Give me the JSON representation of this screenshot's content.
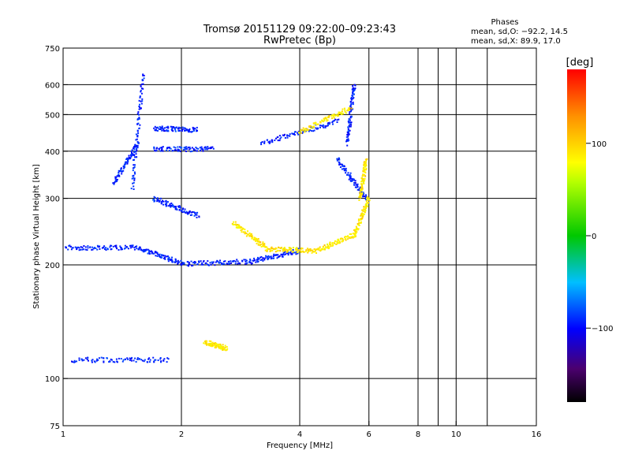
{
  "chart_data": {
    "type": "scatter",
    "title": "Tromsø 20151129 09:22:00–09:23:43",
    "subtitle": "RwPretec (Bp)",
    "xlabel": "Frequency [MHz]",
    "ylabel": "Stationary phase Virtual Height [km]",
    "x_scale": "log",
    "y_scale": "log",
    "xlim": [
      1,
      16
    ],
    "ylim": [
      75,
      750
    ],
    "x_ticks": [
      1,
      2,
      4,
      6,
      8,
      10,
      16
    ],
    "x_tick_labels": [
      "1",
      "2",
      "4",
      "6",
      "8",
      "10",
      "16"
    ],
    "y_ticks": [
      75,
      100,
      200,
      300,
      400,
      500,
      600,
      750
    ],
    "y_tick_labels": [
      "75",
      "100",
      "200",
      "300",
      "400",
      "500",
      "600",
      "750"
    ],
    "grid": true,
    "stats": {
      "header": "Phases",
      "line1": "mean, sd,O: −92.2, 14.5",
      "line2": "mean, sd,X:  89.9, 17.0"
    },
    "colorbar": {
      "label": "[deg]",
      "min": -180,
      "max": 180,
      "tick_values": [
        100,
        0,
        -100
      ],
      "tick_labels": [
        "100",
        "0",
        "−100"
      ]
    },
    "series": [
      {
        "name": "O",
        "phase_mean": -92.2,
        "phase_sd": 14.5,
        "segments": [
          {
            "f0": 1.0,
            "f1": 1.55,
            "h0": 222,
            "h1": 222
          },
          {
            "f0": 1.55,
            "f1": 2.0,
            "h0": 222,
            "h1": 202
          },
          {
            "f0": 2.0,
            "f1": 3.0,
            "h0": 201,
            "h1": 204
          },
          {
            "f0": 3.0,
            "f1": 4.0,
            "h0": 204,
            "h1": 218
          },
          {
            "f0": 1.05,
            "f1": 1.85,
            "h0": 112,
            "h1": 112
          },
          {
            "f0": 1.5,
            "f1": 1.6,
            "h0": 320,
            "h1": 640
          },
          {
            "f0": 1.7,
            "f1": 2.2,
            "h0": 460,
            "h1": 455
          },
          {
            "f0": 1.7,
            "f1": 2.4,
            "h0": 405,
            "h1": 405
          },
          {
            "f0": 1.35,
            "f1": 1.55,
            "h0": 330,
            "h1": 420
          },
          {
            "f0": 1.7,
            "f1": 2.2,
            "h0": 300,
            "h1": 270
          },
          {
            "f0": 3.2,
            "f1": 5.0,
            "h0": 420,
            "h1": 480
          },
          {
            "f0": 5.0,
            "f1": 5.9,
            "h0": 380,
            "h1": 300
          },
          {
            "f0": 5.3,
            "f1": 5.5,
            "h0": 420,
            "h1": 600
          }
        ]
      },
      {
        "name": "X",
        "phase_mean": 89.9,
        "phase_sd": 17.0,
        "segments": [
          {
            "f0": 2.7,
            "f1": 3.3,
            "h0": 258,
            "h1": 222
          },
          {
            "f0": 3.3,
            "f1": 4.4,
            "h0": 220,
            "h1": 218
          },
          {
            "f0": 4.4,
            "f1": 5.5,
            "h0": 218,
            "h1": 240
          },
          {
            "f0": 5.5,
            "f1": 6.0,
            "h0": 240,
            "h1": 300
          },
          {
            "f0": 5.7,
            "f1": 5.9,
            "h0": 300,
            "h1": 380
          },
          {
            "f0": 4.0,
            "f1": 5.4,
            "h0": 450,
            "h1": 520
          },
          {
            "f0": 2.3,
            "f1": 2.6,
            "h0": 125,
            "h1": 120
          }
        ]
      }
    ]
  }
}
